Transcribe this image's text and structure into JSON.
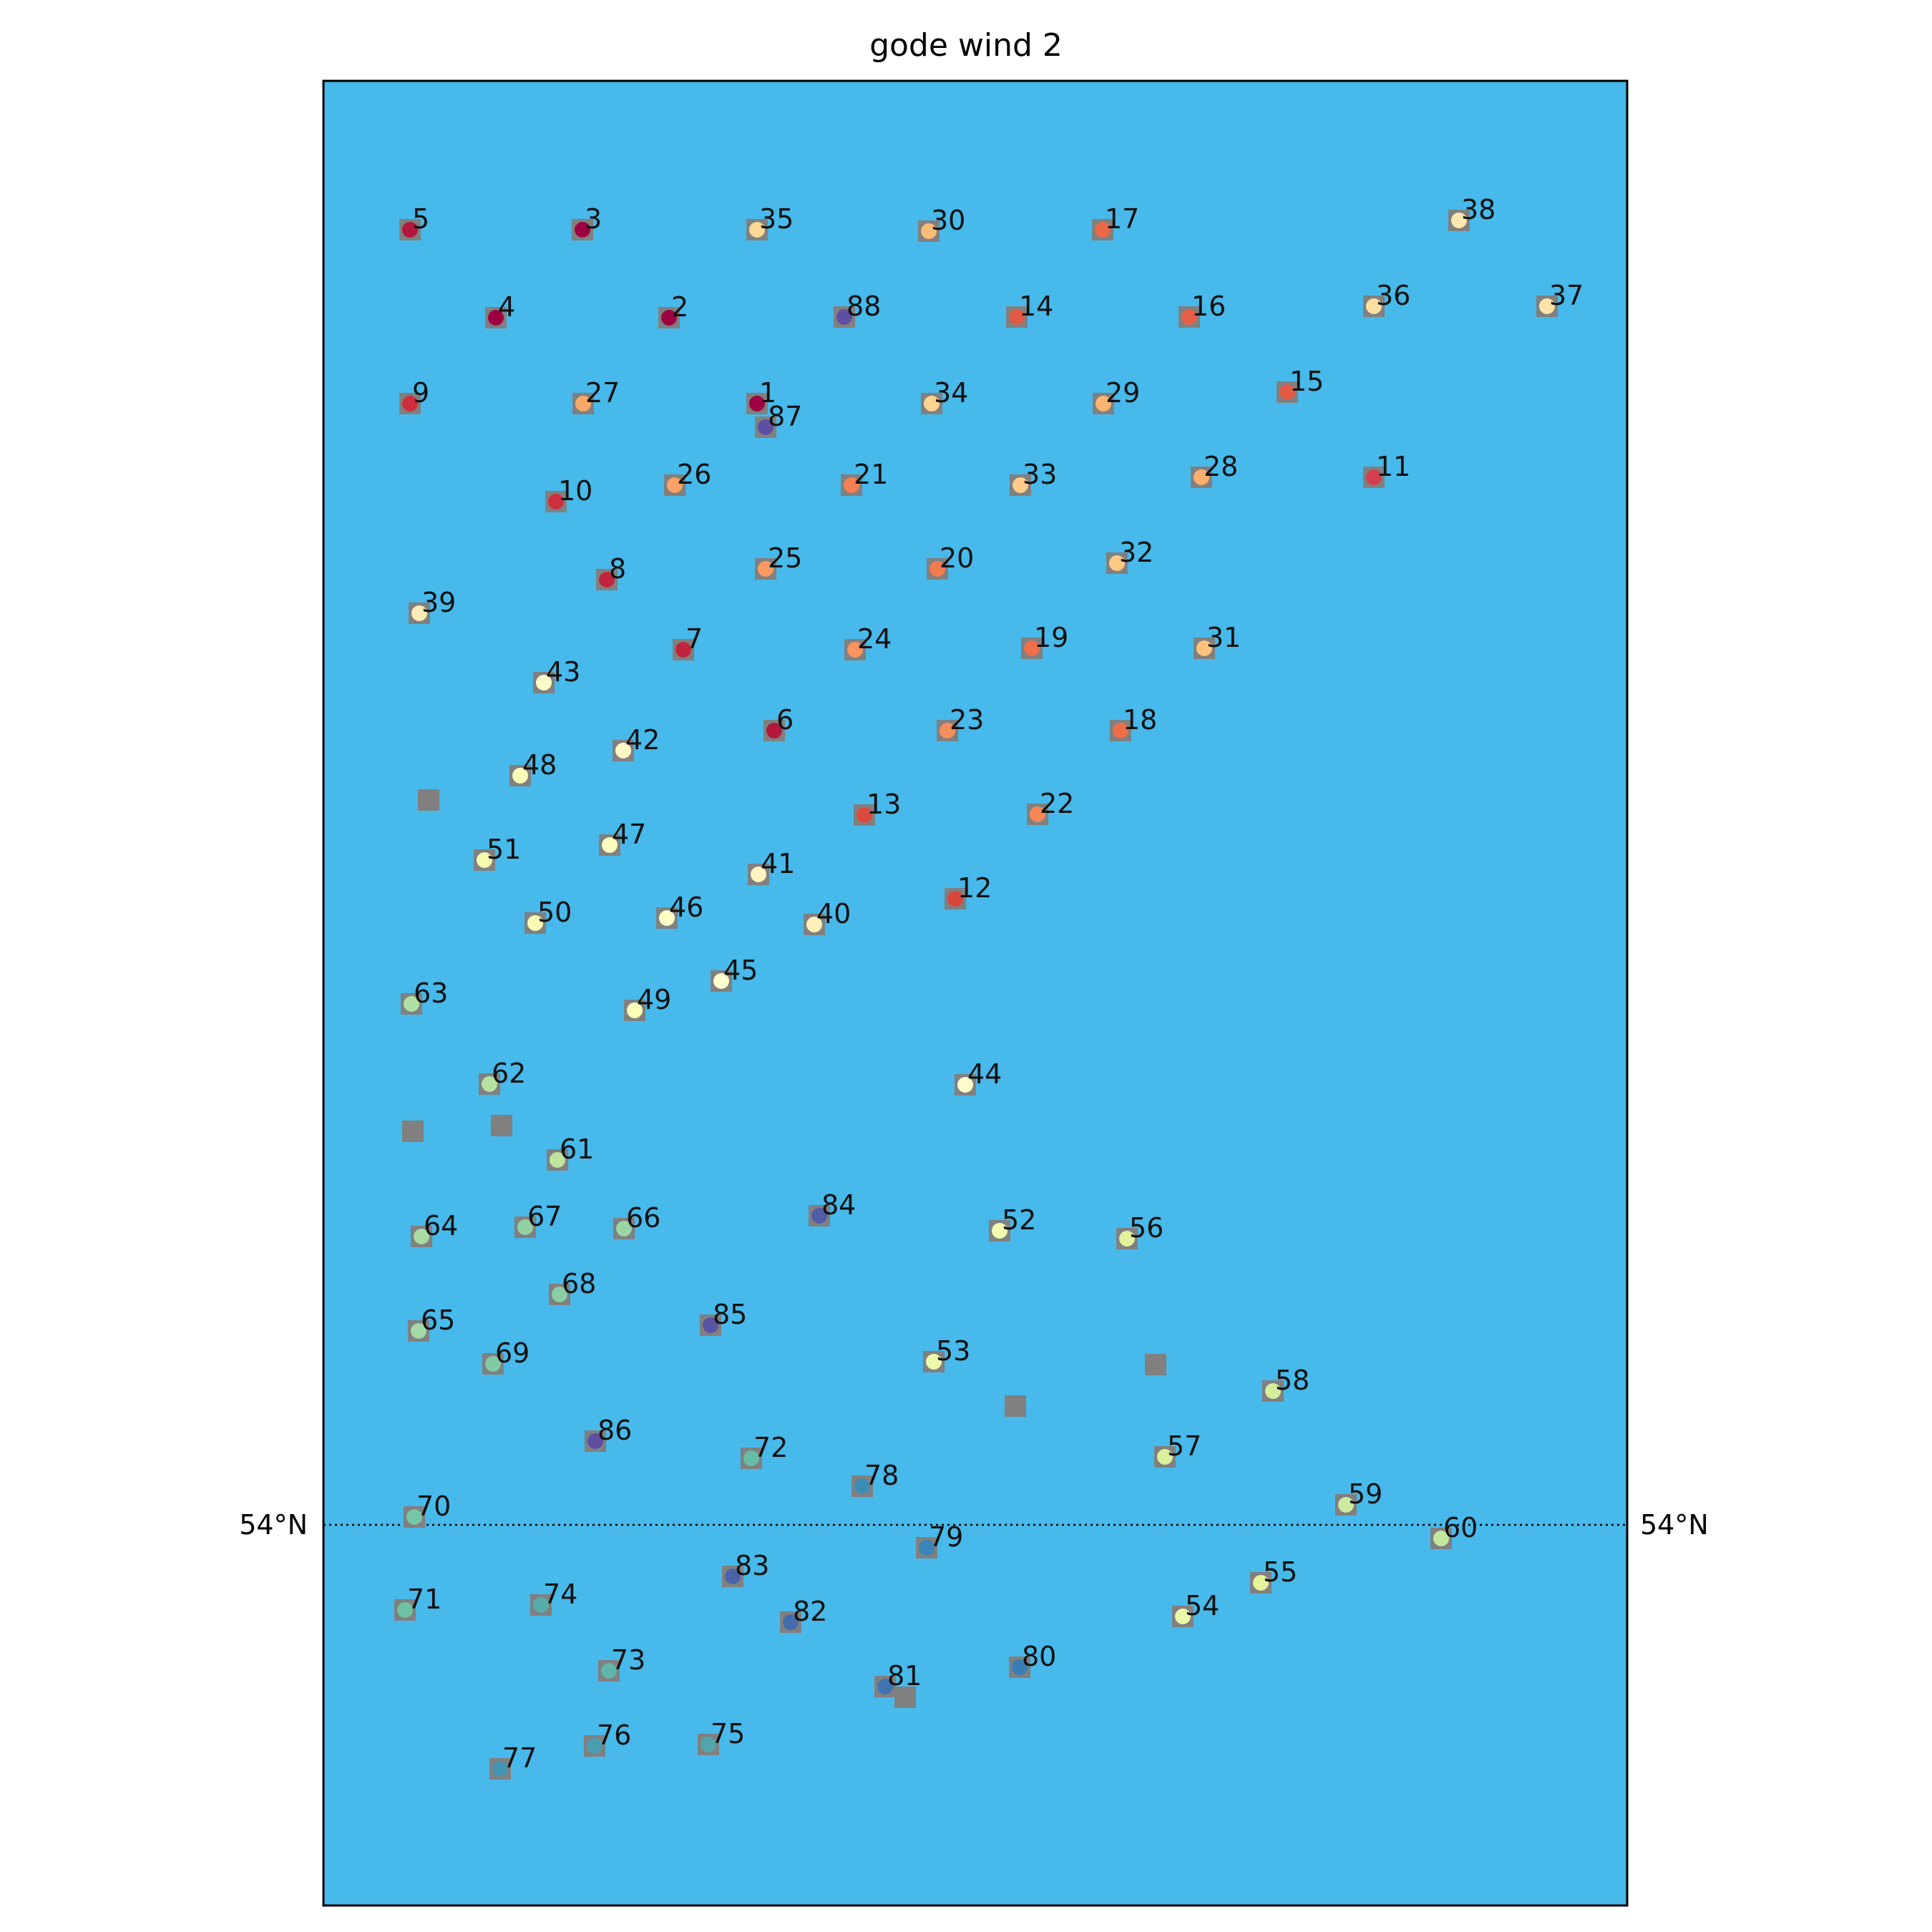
{
  "title": "gode wind 2",
  "colors": {
    "sea": "#47b9ea",
    "frame": "#000000",
    "marker_square": "#808080",
    "parallel_line": "#000000"
  },
  "parallel": {
    "label": "54°N",
    "latitude": 54.0
  },
  "turbines": [
    {
      "id": "1",
      "color": "#9e0142"
    },
    {
      "id": "2",
      "color": "#9e0142"
    },
    {
      "id": "3",
      "color": "#9e0142"
    },
    {
      "id": "4",
      "color": "#9e0142"
    },
    {
      "id": "5",
      "color": "#b2183b"
    },
    {
      "id": "6",
      "color": "#b2183b"
    },
    {
      "id": "7",
      "color": "#c1253d"
    },
    {
      "id": "8",
      "color": "#c1253d"
    },
    {
      "id": "9",
      "color": "#ce2f3e"
    },
    {
      "id": "10",
      "color": "#ce2f3e"
    },
    {
      "id": "11",
      "color": "#d53e4f"
    },
    {
      "id": "12",
      "color": "#d8473e"
    },
    {
      "id": "13",
      "color": "#dc4a3e"
    },
    {
      "id": "14",
      "color": "#e05a46"
    },
    {
      "id": "15",
      "color": "#e25a44"
    },
    {
      "id": "16",
      "color": "#e65f46"
    },
    {
      "id": "17",
      "color": "#ea6748"
    },
    {
      "id": "18",
      "color": "#ee6e4a"
    },
    {
      "id": "19",
      "color": "#f06f4a"
    },
    {
      "id": "20",
      "color": "#f37a4f"
    },
    {
      "id": "21",
      "color": "#f57f52"
    },
    {
      "id": "22",
      "color": "#f68656"
    },
    {
      "id": "23",
      "color": "#f88e5a"
    },
    {
      "id": "24",
      "color": "#f99360"
    },
    {
      "id": "25",
      "color": "#fa9a62"
    },
    {
      "id": "26",
      "color": "#fba065"
    },
    {
      "id": "27",
      "color": "#fca86a"
    },
    {
      "id": "28",
      "color": "#fdaf6e"
    },
    {
      "id": "29",
      "color": "#fdb572"
    },
    {
      "id": "30",
      "color": "#fdbc77"
    },
    {
      "id": "31",
      "color": "#fdc27c"
    },
    {
      "id": "32",
      "color": "#fdc884"
    },
    {
      "id": "33",
      "color": "#fdcd89"
    },
    {
      "id": "34",
      "color": "#fed38f"
    },
    {
      "id": "35",
      "color": "#fed896"
    },
    {
      "id": "36",
      "color": "#fede9f"
    },
    {
      "id": "37",
      "color": "#fee3a8"
    },
    {
      "id": "38",
      "color": "#fee8b0"
    },
    {
      "id": "39",
      "color": "#feecb4"
    },
    {
      "id": "40",
      "color": "#fff0ba"
    },
    {
      "id": "41",
      "color": "#fff3c0"
    },
    {
      "id": "42",
      "color": "#fff6c4"
    },
    {
      "id": "43",
      "color": "#fffac8"
    },
    {
      "id": "44",
      "color": "#fffdcc"
    },
    {
      "id": "45",
      "color": "#ffffcc"
    },
    {
      "id": "46",
      "color": "#fefec6"
    },
    {
      "id": "47",
      "color": "#fdfebf"
    },
    {
      "id": "48",
      "color": "#fbfdb9"
    },
    {
      "id": "49",
      "color": "#fafdb6"
    },
    {
      "id": "50",
      "color": "#f8fcb2"
    },
    {
      "id": "51",
      "color": "#f6fbb0"
    },
    {
      "id": "52",
      "color": "#f2faaf"
    },
    {
      "id": "53",
      "color": "#eef8ab"
    },
    {
      "id": "54",
      "color": "#ebf7a6"
    },
    {
      "id": "55",
      "color": "#e6f59d"
    },
    {
      "id": "56",
      "color": "#e0f29b"
    },
    {
      "id": "57",
      "color": "#d9ef9b"
    },
    {
      "id": "58",
      "color": "#d3ed9c"
    },
    {
      "id": "59",
      "color": "#cdea9e"
    },
    {
      "id": "60",
      "color": "#c6e79f"
    },
    {
      "id": "61",
      "color": "#bfe4a0"
    },
    {
      "id": "62",
      "color": "#b7e1a1"
    },
    {
      "id": "63",
      "color": "#b0dea2"
    },
    {
      "id": "64",
      "color": "#a9dba3"
    },
    {
      "id": "65",
      "color": "#a2d9a4"
    },
    {
      "id": "66",
      "color": "#9bd5a4"
    },
    {
      "id": "67",
      "color": "#92d1a4"
    },
    {
      "id": "68",
      "color": "#89cea5"
    },
    {
      "id": "69",
      "color": "#80caa5"
    },
    {
      "id": "70",
      "color": "#77c6a6"
    },
    {
      "id": "71",
      "color": "#6ec2a6"
    },
    {
      "id": "72",
      "color": "#66bda6"
    },
    {
      "id": "73",
      "color": "#5fb5a8"
    },
    {
      "id": "74",
      "color": "#58adab"
    },
    {
      "id": "75",
      "color": "#51a5ad"
    },
    {
      "id": "76",
      "color": "#4a9db0"
    },
    {
      "id": "77",
      "color": "#4395b3"
    },
    {
      "id": "78",
      "color": "#3d8cb6"
    },
    {
      "id": "79",
      "color": "#3a84b9"
    },
    {
      "id": "80",
      "color": "#3a7cb6"
    },
    {
      "id": "81",
      "color": "#3f73b1"
    },
    {
      "id": "82",
      "color": "#446bad"
    },
    {
      "id": "83",
      "color": "#4a63aa"
    },
    {
      "id": "84",
      "color": "#515ba6"
    },
    {
      "id": "85",
      "color": "#5855a2"
    },
    {
      "id": "86",
      "color": "#5e4fa2"
    },
    {
      "id": "87",
      "color": "#5e4fa2"
    },
    {
      "id": "88",
      "color": "#5e4fa2"
    }
  ]
}
